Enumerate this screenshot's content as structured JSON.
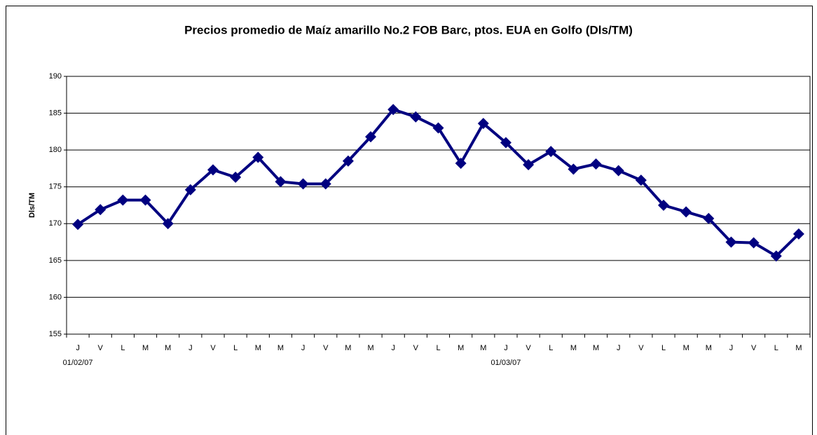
{
  "chart_data": {
    "type": "line",
    "title": "Precios promedio de Maíz amarillo No.2 FOB Barc, ptos. EUA en Golfo (Dls/TM)",
    "y_label": "Dls/TM",
    "categories": [
      "J",
      "V",
      "L",
      "M",
      "M",
      "J",
      "V",
      "L",
      "M",
      "M",
      "J",
      "V",
      "M",
      "M",
      "J",
      "V",
      "L",
      "M",
      "M",
      "J",
      "V",
      "L",
      "M",
      "M",
      "J",
      "V",
      "L",
      "M",
      "M",
      "J",
      "V",
      "L",
      "M"
    ],
    "groups": [
      {
        "label": "01/02/07",
        "start": 0
      },
      {
        "label": "01/03/07",
        "start": 19
      }
    ],
    "series": [
      {
        "name": "Dls/TM",
        "color": "#000080",
        "values": [
          169.9,
          171.9,
          173.2,
          173.2,
          170.0,
          174.6,
          177.3,
          176.3,
          179.0,
          175.7,
          175.4,
          175.4,
          178.5,
          181.8,
          185.5,
          184.5,
          183.0,
          178.2,
          183.6,
          181.0,
          178.0,
          179.8,
          177.4,
          178.1,
          177.2,
          175.9,
          172.5,
          171.6,
          170.7,
          167.5,
          167.4,
          165.6,
          168.6
        ]
      }
    ],
    "ylim": [
      155,
      190
    ],
    "yticks": [
      155,
      160,
      165,
      170,
      175,
      180,
      185,
      190
    ],
    "grid": true
  }
}
